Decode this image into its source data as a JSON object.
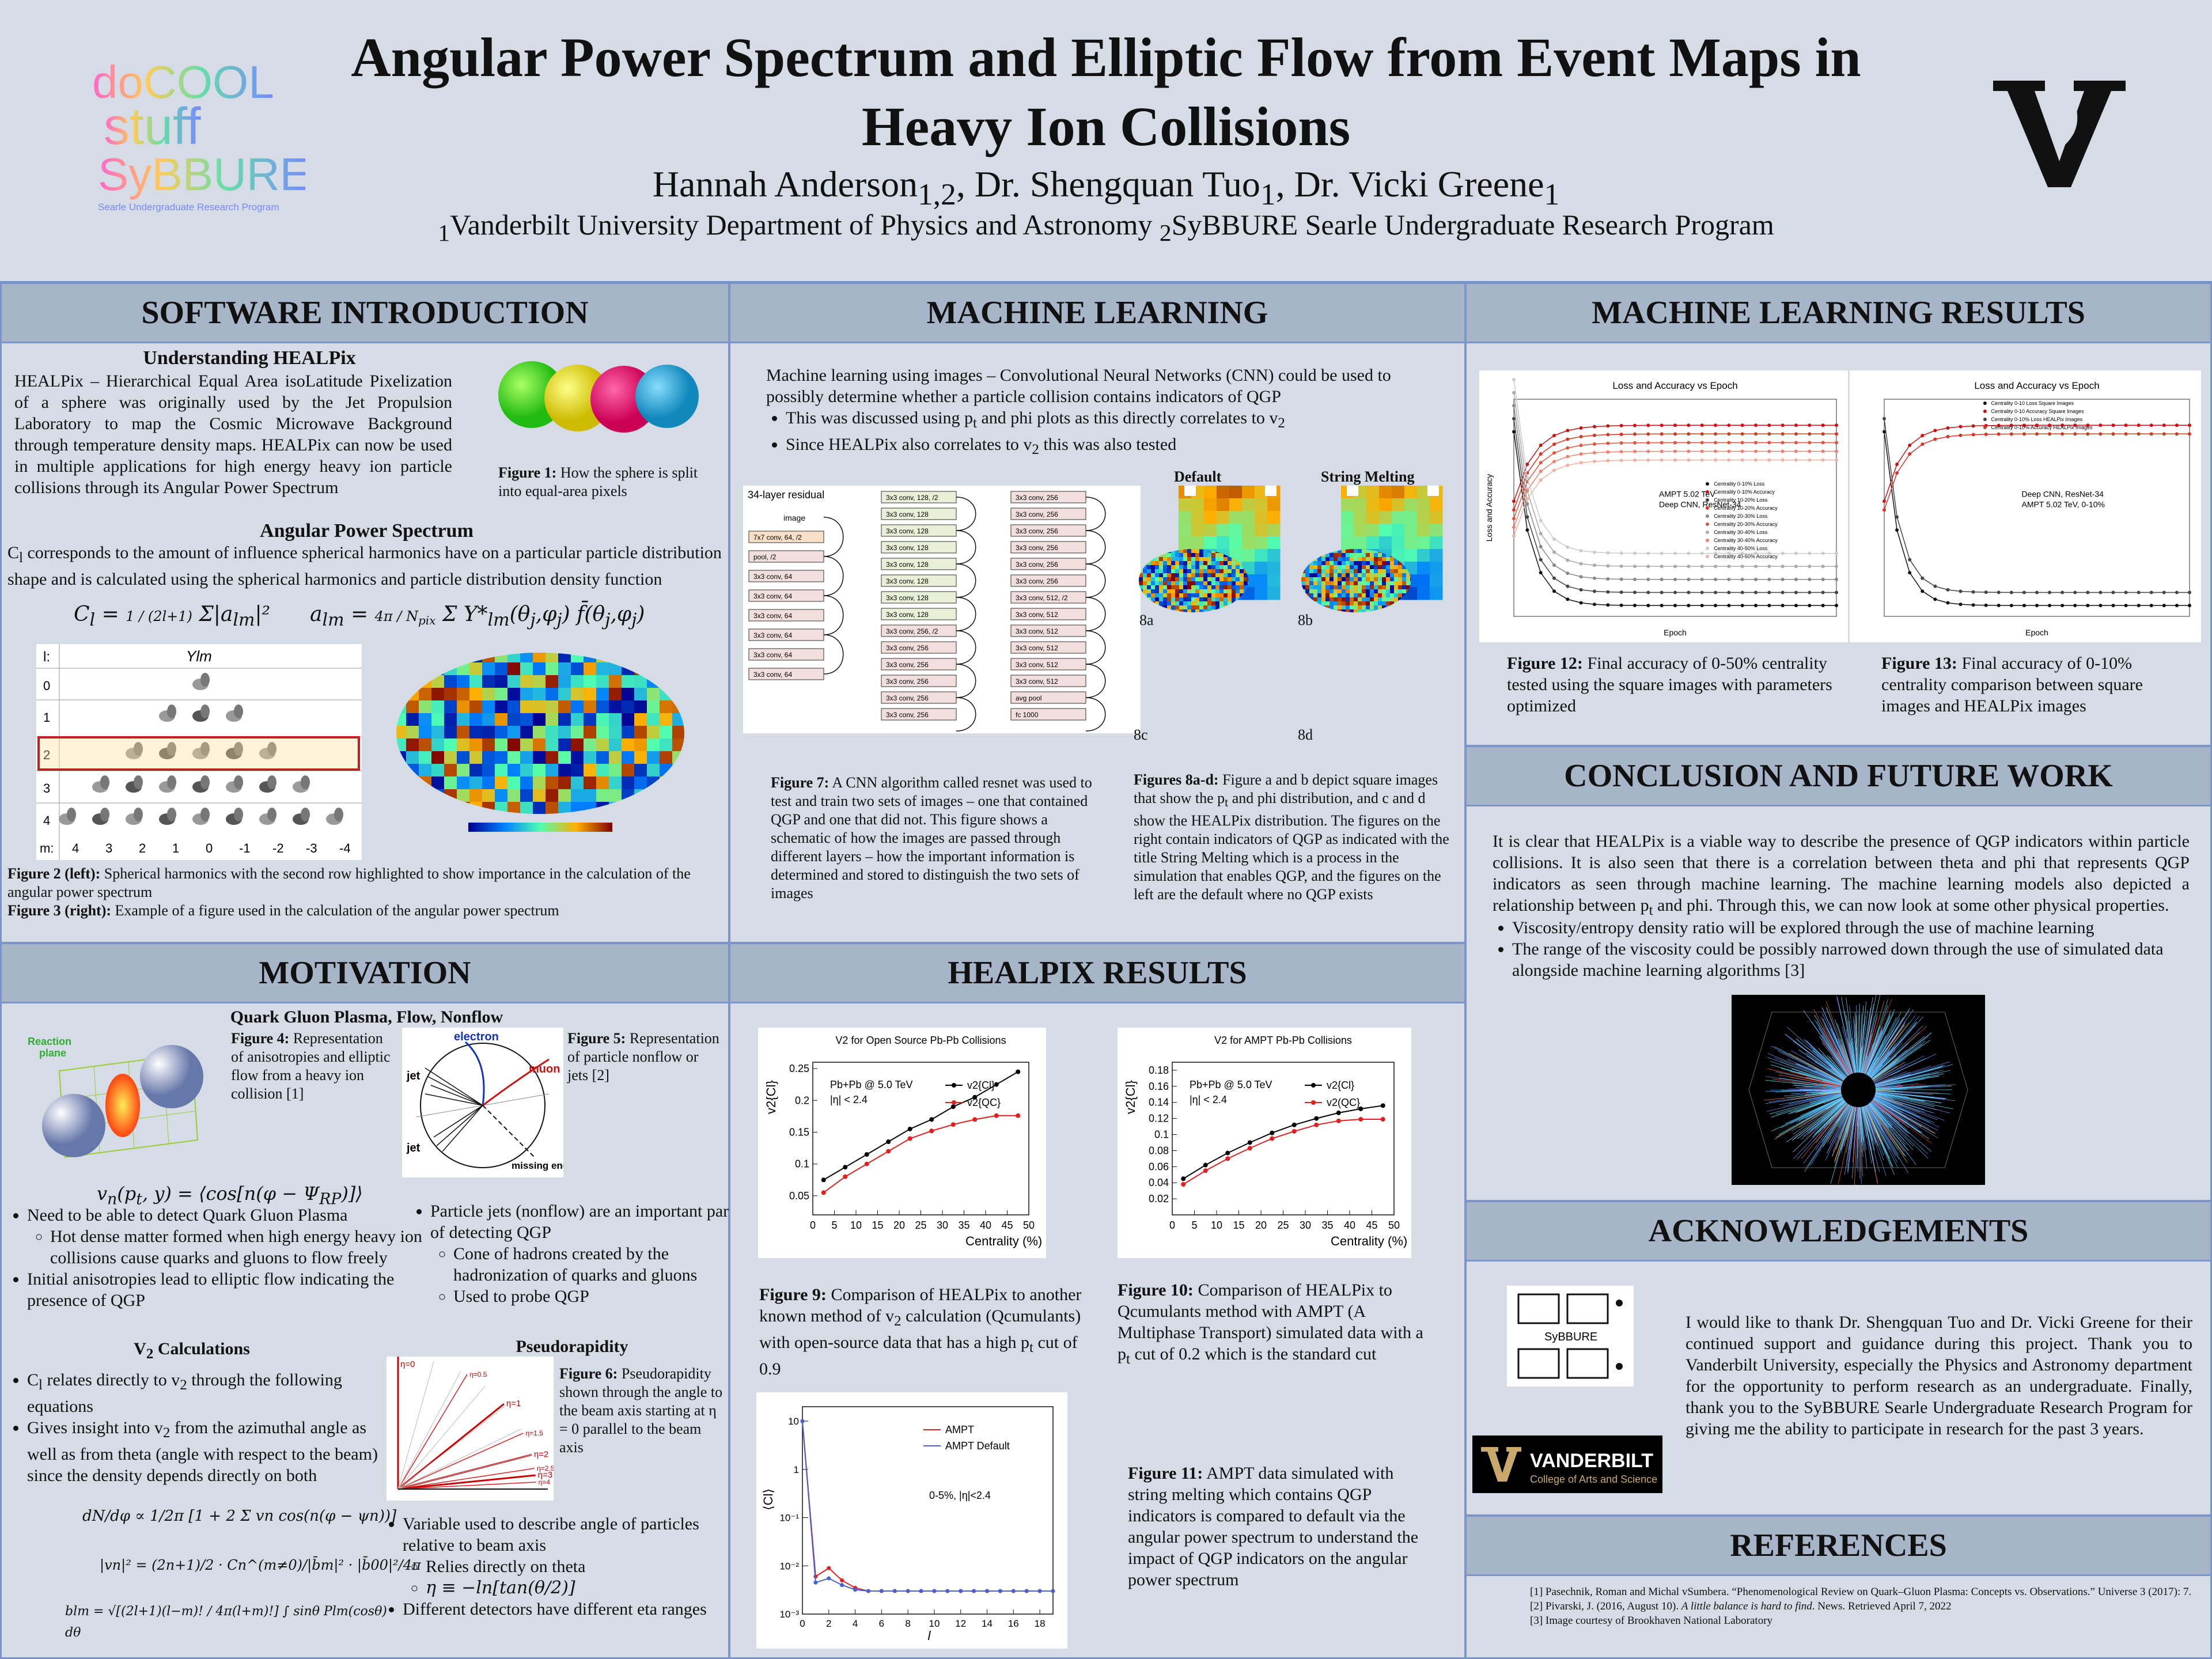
{
  "header": {
    "title_line1": "Angular Power Spectrum and Elliptic Flow from Event Maps in",
    "title_line2": "Heavy Ion Collisions",
    "authors": "Hannah Anderson1,2, Dr. Shengquan Tuo1, Dr. Vicki Greene1",
    "affiliations": "1Vanderbilt University Department of Physics and Astronomy 2SyBBURE Searle Undergraduate Research Program",
    "logo_left_lines": [
      "doCOOL",
      "stuff",
      "SyBBURE",
      "Searle Undergraduate Research Program"
    ],
    "logo_right": "V"
  },
  "software": {
    "heading": "SOFTWARE INTRODUCTION",
    "sub1": "Understanding HEALPix",
    "para1": "HEALPix – Hierarchical Equal Area isoLatitude Pixelization of a sphere was originally used by the Jet Propulsion Laboratory to map the Cosmic Microwave Background through temperature density maps. HEALPix can now be used in multiple applications for high energy heavy ion particle collisions through its Angular Power Spectrum",
    "fig1_caption_bold": "Figure 1:",
    "fig1_caption": " How the sphere is split into equal-area pixels",
    "sub2": "Angular Power Spectrum",
    "para2": "Cl corresponds to the amount of influence spherical harmonics have on a particular particle distribution shape and is calculated using the spherical harmonics and particle distribution density function",
    "eq_cl": "Cl = 1/(2l+1) Σ|alm|²",
    "eq_alm": "alm = 4π/Npix Σ Y*lm(θj,φj) f(θj,φj)",
    "table_header_l": "l:",
    "table_header_y": "Ylm",
    "table_rows": [
      "0",
      "1",
      "2",
      "3",
      "4"
    ],
    "table_m_label": "m:",
    "table_m_values": [
      "4",
      "3",
      "2",
      "1",
      "0",
      "-1",
      "-2",
      "-3",
      "-4"
    ],
    "fig2_bold": "Figure 2 (left):",
    "fig2": " Spherical harmonics with the second row highlighted to show importance in the calculation of the angular power spectrum",
    "fig3_bold": "Figure 3 (right):",
    "fig3": " Example of a figure used in the calculation of the angular power spectrum"
  },
  "ml": {
    "heading": "MACHINE LEARNING",
    "intro": "Machine learning using images – Convolutional Neural Networks (CNN) could be used to possibly determine whether a particle collision contains indicators of QGP",
    "bullet1": "This was discussed using pt and phi plots as this directly correlates to v2",
    "bullet2": "Since HEALPix also correlates to v2 this was also tested",
    "resnet_label": "34-layer residual",
    "resnet_layers_a": [
      "image",
      "7x7 conv, 64, /2",
      "pool, /2",
      "3x3 conv, 64",
      "3x3 conv, 64",
      "3x3 conv, 64",
      "3x3 conv, 64",
      "3x3 conv, 64",
      "3x3 conv, 64"
    ],
    "resnet_layers_b": [
      "3x3 conv, 128, /2",
      "3x3 conv, 128",
      "3x3 conv, 128",
      "3x3 conv, 128",
      "3x3 conv, 128",
      "3x3 conv, 128",
      "3x3 conv, 128",
      "3x3 conv, 128",
      "3x3 conv, 256, /2",
      "3x3 conv, 256",
      "3x3 conv, 256",
      "3x3 conv, 256",
      "3x3 conv, 256",
      "3x3 conv, 256"
    ],
    "resnet_layers_c": [
      "3x3 conv, 256",
      "3x3 conv, 256",
      "3x3 conv, 256",
      "3x3 conv, 256",
      "3x3 conv, 256",
      "3x3 conv, 256",
      "3x3 conv, 512, /2",
      "3x3 conv, 512",
      "3x3 conv, 512",
      "3x3 conv, 512",
      "3x3 conv, 512",
      "3x3 conv, 512",
      "avg pool",
      "fc 1000"
    ],
    "col_default": "Default",
    "col_string": "String Melting",
    "lbl_8a": "8a",
    "lbl_8b": "8b",
    "lbl_8c": "8c",
    "lbl_8d": "8d",
    "fig7_bold": "Figure 7:",
    "fig7": " A CNN algorithm called resnet was used to test and train two sets of images – one that contained QGP and one that did not. This figure shows a schematic of how the images are passed through different layers – how the important information is determined and stored to distinguish the two sets of images",
    "fig8_bold": "Figures 8a-d:",
    "fig8": " Figure a and b depict square images that show the pt and phi distribution, and c and d show the HEALPix distribution. The figures on the right contain indicators of QGP as indicated with the title String Melting which is a process in the simulation that enables QGP, and the figures on the left are the default where no QGP exists"
  },
  "mlres": {
    "heading": "MACHINE LEARNING RESULTS",
    "fig12_bold": "Figure 12:",
    "fig12": " Final accuracy of 0-50% centrality tested using the square images with parameters optimized",
    "fig13_bold": "Figure 13:",
    "fig13": " Final accuracy of 0-10% centrality comparison between square images and HEALPix images",
    "plot12_title": "Loss and Accuracy vs Epoch",
    "plot12_xlabel": "Epoch",
    "plot12_ylabel": "Loss and Accuracy",
    "plot12_note1": "AMPT 5.02 TeV",
    "plot12_note2": "Deep CNN, ResNet-34",
    "plot12_legend": [
      "Centrality 0-10% Loss",
      "Centrality 0-10% Accuracy",
      "Centrality 10-20% Loss",
      "Centrality 10-20% Accuracy",
      "Centrality 20-30% Loss",
      "Centrality 20-30% Accuracy",
      "Centrality 30-40% Loss",
      "Centrality 30-40% Accuracy",
      "Centrality 40-50% Loss",
      "Centrality 40-50% Accuracy"
    ],
    "plot13_title": "Loss and Accuracy vs Epoch",
    "plot13_xlabel": "Epoch",
    "plot13_note1": "Deep CNN, ResNet-34",
    "plot13_note2": "AMPT 5.02 TeV, 0-10%",
    "plot13_legend": [
      "Centrality 0-10 Loss Square Images",
      "Centrality 0-10 Accuracy Square Images",
      "Centrality 0-10% Loss HEALPix Images",
      "Centrality 0-10% Accuracy HEALPix Images"
    ]
  },
  "conclusion": {
    "heading": "CONCLUSION AND FUTURE WORK",
    "para": "It is clear that HEALPix is a viable way to describe the presence of QGP indicators within particle collisions. It is also seen that there is a correlation between theta and phi that represents QGP indicators as seen through machine learning. The machine learning models also depicted a relationship between pt and phi. Through this, we can now look at some other physical properties.",
    "bullet1": "Viscosity/entropy density ratio will be explored through the use of machine learning",
    "bullet2": "The range of the viscosity could be possibly narrowed down through the use of simulated data alongside machine learning algorithms [3]"
  },
  "motivation": {
    "heading": "MOTIVATION",
    "sub1": "Quark Gluon Plasma, Flow, Nonflow",
    "fig4_bold": "Figure 4:",
    "fig4": " Representation of anisotropies and elliptic flow from a heavy ion collision [1]",
    "fig4_label": "Reaction plane",
    "fig5_bold": "Figure 5:",
    "fig5": " Representation of particle nonflow or jets [2]",
    "fig5_labels": [
      "electron",
      "muon",
      "jet",
      "jet",
      "missing energy"
    ],
    "eq_vn": "vn(pt, y) = ⟨cos[n(φ − ΨRP)]⟩",
    "left_b1": "Need to be able to detect Quark Gluon Plasma",
    "left_b1a": "Hot dense matter formed when high energy heavy ion collisions cause quarks and gluons to flow freely",
    "left_b2": "Initial anisotropies lead to elliptic flow indicating the presence of QGP",
    "right_b1": "Particle jets (nonflow) are an important part of detecting QGP",
    "right_b1a": "Cone of hadrons created by the hadronization of quarks and gluons",
    "right_b1b": "Used to probe QGP",
    "sub_v2": "V2 Calculations",
    "v2_b1": "Cl relates directly to v2 through the following equations",
    "v2_b2": "Gives insight into v2 from the azimuthal angle as well as from theta (angle with respect to the beam) since the density depends directly on both",
    "eq1": "dN/dφ ∝ 1/2π [1 + 2 Σ vn cos(n(φ − ψn))]",
    "eq2": "|vn|² = (2n+1)/2 · Cn^(m≠0)/|b̄m|² · |b̄00|²/4π",
    "eq3": "blm = √[(2l+1)(l−m)! / 4π(l+m)!] ∫ sinθ Plm(cosθ) dθ",
    "sub_pseudo": "Pseudorapidity",
    "fig6_bold": "Figure 6:",
    "fig6": " Pseudorapidity shown through the angle to the beam axis starting at η = 0 parallel to the beam axis",
    "eta_labels": [
      "η=0",
      "η=0.5",
      "η=1",
      "η=1.5",
      "η=2",
      "η=2.5",
      "η=3",
      "η=4"
    ],
    "pseudo_b1": "Variable used to describe angle of particles relative to beam axis",
    "pseudo_b1a": "Relies directly on theta",
    "pseudo_eq": "η ≡ −ln[tan(θ/2)]",
    "pseudo_b2": "Different detectors have different eta ranges"
  },
  "healpix": {
    "heading": "HEALPIX RESULTS",
    "fig9_bold": "Figure 9:",
    "fig9": " Comparison of HEALPix to another known method of v2 calculation (Qcumulants) with open-source data that has a high pt cut of 0.9",
    "fig10_bold": "Figure 10:",
    "fig10": " Comparison of HEALPix to Qcumulants method with AMPT (A Multiphase Transport) simulated data with a pt cut of 0.2 which is the standard cut",
    "fig11_bold": "Figure 11:",
    "fig11": " AMPT data simulated with string melting which contains QGP indicators is compared to default via the angular power spectrum to understand the impact of QGP indicators on the angular power spectrum"
  },
  "ack": {
    "heading": "ACKNOWLEDGEMENTS",
    "para": "I would like to thank Dr. Shengquan Tuo and Dr. Vicki Greene for their continued support and guidance during this project. Thank you to Vanderbilt University, especially the Physics and Astronomy department for the opportunity to perform research as an undergraduate. Finally, thank you to the SyBBURE Searle Undergraduate Research Program for giving me the ability to participate in research for the past 3 years.",
    "sybbure_label": "SyBBURE",
    "vandy_name": "VANDERBILT",
    "vandy_sub": "College of Arts and Science"
  },
  "refs": {
    "heading": "REFERENCES",
    "r1": "[1] Pasechnik, Roman and Michal vSumbera. “Phenomenological Review on Quark–Gluon Plasma: Concepts vs. Observations.” Universe 3 (2017): 7.",
    "r2": "[2] Pivarski, J. (2016, August 10). A little balance is hard to find. News. Retrieved April 7, 2022",
    "r3": "[3] Image courtesy of Brookhaven National Laboratory"
  },
  "chart_data": [
    {
      "type": "line",
      "title": "V2 for Open Source Pb-Pb Collisions",
      "annotation": [
        "Pb+Pb @ 5.0 TeV",
        "|η| < 2.4"
      ],
      "xlabel": "Centrality (%)",
      "ylabel": "v2{Cl}",
      "xlim": [
        0,
        50
      ],
      "ylim": [
        0.02,
        0.26
      ],
      "xticks": [
        0,
        5,
        10,
        15,
        20,
        25,
        30,
        35,
        40,
        45,
        50
      ],
      "yticks": [
        0.05,
        0.1,
        0.15,
        0.2,
        0.25
      ],
      "ytick_labels": [
        "0.05",
        "0.1",
        "0.15",
        "0.2",
        "0.25"
      ],
      "x": [
        2.5,
        7.5,
        12.5,
        17.5,
        22.5,
        27.5,
        32.5,
        37.5,
        42.5,
        47.5
      ],
      "series": [
        {
          "name": "v2{Cl}",
          "color": "#000000",
          "values": [
            0.075,
            0.095,
            0.115,
            0.135,
            0.155,
            0.17,
            0.19,
            0.205,
            0.225,
            0.245
          ]
        },
        {
          "name": "v2{QC}",
          "color": "#e02020",
          "values": [
            0.055,
            0.08,
            0.1,
            0.12,
            0.14,
            0.152,
            0.162,
            0.17,
            0.176,
            0.176
          ]
        }
      ]
    },
    {
      "type": "line",
      "title": "V2 for AMPT Pb-Pb Collisions",
      "annotation": [
        "Pb+Pb @ 5.0 TeV",
        "|η| < 2.4"
      ],
      "xlabel": "Centrality (%)",
      "ylabel": "v2{Cl}",
      "xlim": [
        0,
        50
      ],
      "ylim": [
        0.0,
        0.19
      ],
      "xticks": [
        0,
        5,
        10,
        15,
        20,
        25,
        30,
        35,
        40,
        45,
        50
      ],
      "yticks": [
        0.02,
        0.04,
        0.06,
        0.08,
        0.1,
        0.12,
        0.14,
        0.16,
        0.18
      ],
      "ytick_labels": [
        "0.02",
        "0.04",
        "0.06",
        "0.08",
        "0.1",
        "0.12",
        "0.14",
        "0.16",
        "0.18"
      ],
      "x": [
        2.5,
        7.5,
        12.5,
        17.5,
        22.5,
        27.5,
        32.5,
        37.5,
        42.5,
        47.5
      ],
      "series": [
        {
          "name": "v2{Cl}",
          "color": "#000000",
          "values": [
            0.045,
            0.062,
            0.077,
            0.09,
            0.102,
            0.112,
            0.12,
            0.127,
            0.132,
            0.136
          ]
        },
        {
          "name": "v2(QC}",
          "color": "#e02020",
          "values": [
            0.038,
            0.055,
            0.07,
            0.083,
            0.095,
            0.104,
            0.112,
            0.117,
            0.119,
            0.119
          ]
        }
      ]
    },
    {
      "type": "line",
      "title": "",
      "annotation": [
        "0-5%, |η|<2.4"
      ],
      "xlabel": "l",
      "ylabel": "⟨Cl⟩",
      "log_y": true,
      "xlim": [
        0,
        19
      ],
      "xticks": [
        0,
        2,
        4,
        6,
        8,
        10,
        12,
        14,
        16,
        18
      ],
      "ytick_labels": [
        "10⁻³",
        "10⁻²",
        "10⁻¹",
        "1",
        "10"
      ],
      "x": [
        0,
        1,
        2,
        3,
        4,
        5,
        6,
        7,
        8,
        9,
        10,
        11,
        12,
        13,
        14,
        15,
        16,
        17,
        18,
        19
      ],
      "series": [
        {
          "name": "AMPT",
          "color": "#e02020",
          "values": [
            10,
            0.006,
            0.009,
            0.005,
            0.0035,
            0.003,
            0.003,
            0.003,
            0.003,
            0.003,
            0.003,
            0.003,
            0.003,
            0.003,
            0.003,
            0.003,
            0.003,
            0.003,
            0.003,
            0.003
          ]
        },
        {
          "name": "AMPT Default",
          "color": "#4a5fd0",
          "values": [
            10,
            0.0045,
            0.0055,
            0.004,
            0.0032,
            0.003,
            0.003,
            0.003,
            0.003,
            0.003,
            0.003,
            0.003,
            0.003,
            0.003,
            0.003,
            0.003,
            0.003,
            0.003,
            0.003,
            0.003
          ]
        }
      ]
    }
  ],
  "colors": {
    "background": "#d5dce6",
    "panel_header": "#a7b5c9",
    "border": "#7b95c9",
    "red": "#e02020"
  }
}
